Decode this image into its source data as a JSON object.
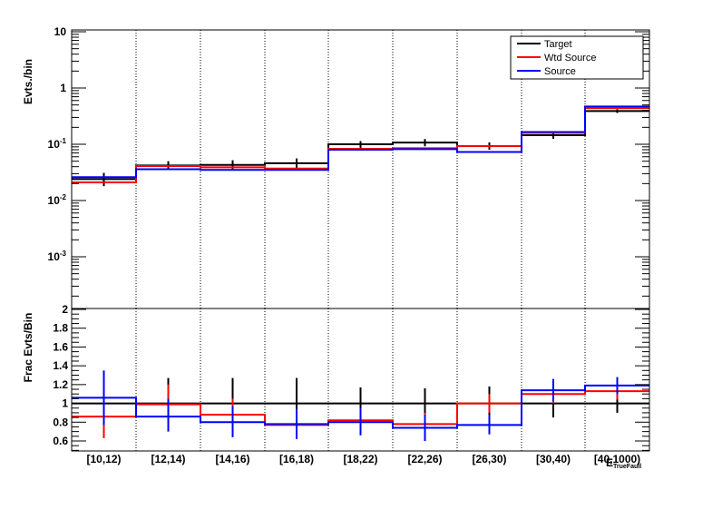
{
  "chart_data": [
    {
      "type": "step",
      "panel": "top",
      "ylabel": "Evts./bin",
      "yscale": "log",
      "ylim": [
        0.0002,
        10
      ],
      "y_tick_labels": [
        {
          "label": "10",
          "exp": "-3",
          "value": 0.001
        },
        {
          "label": "10",
          "exp": "-2",
          "value": 0.01
        },
        {
          "label": "10",
          "exp": "-1",
          "value": 0.1
        },
        {
          "label": "1",
          "exp": "",
          "value": 1
        },
        {
          "label": "10",
          "exp": "",
          "value": 10
        }
      ],
      "categories": [
        "[10,12)",
        "[12,14)",
        "[14,16)",
        "[16,18)",
        "[18,22)",
        "[22,26)",
        "[26,30)",
        "[30,40)",
        "[40,1000)"
      ],
      "grid_x": true,
      "grid_y": false,
      "legend_position": "top-right",
      "series": [
        {
          "name": "Target",
          "color": "#000000",
          "values": [
            0.024,
            0.042,
            0.043,
            0.046,
            0.1,
            0.107,
            0.093,
            0.145,
            0.39
          ],
          "err_low": [
            0.018,
            0.035,
            0.035,
            0.036,
            0.085,
            0.092,
            0.08,
            0.125,
            0.36
          ],
          "err_high": [
            0.031,
            0.05,
            0.052,
            0.056,
            0.114,
            0.124,
            0.108,
            0.165,
            0.42
          ]
        },
        {
          "name": "Wtd Source",
          "color": "#ff0000",
          "values": [
            0.021,
            0.041,
            0.039,
            0.037,
            0.083,
            0.085,
            0.093,
            0.16,
            0.44
          ],
          "err_low": [
            0.021,
            0.041,
            0.039,
            0.037,
            0.083,
            0.085,
            0.093,
            0.16,
            0.44
          ],
          "err_high": [
            0.021,
            0.041,
            0.039,
            0.037,
            0.083,
            0.085,
            0.093,
            0.16,
            0.44
          ]
        },
        {
          "name": "Source",
          "color": "#0000ff",
          "values": [
            0.026,
            0.036,
            0.035,
            0.035,
            0.08,
            0.082,
            0.073,
            0.165,
            0.47
          ],
          "err_low": [
            0.026,
            0.036,
            0.035,
            0.035,
            0.08,
            0.082,
            0.073,
            0.165,
            0.47
          ],
          "err_high": [
            0.026,
            0.036,
            0.035,
            0.035,
            0.08,
            0.082,
            0.073,
            0.165,
            0.47
          ]
        }
      ]
    },
    {
      "type": "step",
      "panel": "bottom",
      "ylabel": "Frac Evts/Bin",
      "yscale": "linear",
      "ylim": [
        0.5,
        2
      ],
      "y_tick_labels": [
        "0.6",
        "0.8",
        "1",
        "1.2",
        "1.4",
        "1.6",
        "1.8",
        "2"
      ],
      "categories": [
        "[10,12)",
        "[12,14)",
        "[14,16)",
        "[16,18)",
        "[18,22)",
        "[22,26)",
        "[26,30)",
        "[30,40)",
        "[40,1000)"
      ],
      "xlabel": "E",
      "xlabel_sub": "TrueFaull",
      "grid_x": true,
      "series": [
        {
          "name": "Target",
          "color": "#000000",
          "values": [
            1,
            1,
            1,
            1,
            1,
            1,
            1,
            1,
            1
          ],
          "err_low": [
            1,
            0.73,
            0.73,
            0.73,
            0.82,
            0.84,
            0.86,
            0.85,
            0.9
          ],
          "err_high": [
            1,
            1.27,
            1.27,
            1.27,
            1.17,
            1.16,
            1.18,
            1.15,
            1.1
          ]
        },
        {
          "name": "Wtd Source",
          "color": "#ff0000",
          "values": [
            0.86,
            0.99,
            0.88,
            0.77,
            0.82,
            0.78,
            1.0,
            1.1,
            1.13
          ],
          "err_low": [
            0.63,
            0.86,
            0.74,
            0.66,
            0.72,
            0.68,
            0.9,
            1.0,
            1.04
          ],
          "err_high": [
            1.08,
            1.2,
            1.05,
            0.86,
            0.93,
            0.9,
            1.1,
            1.2,
            1.22
          ]
        },
        {
          "name": "Source",
          "color": "#0000ff",
          "values": [
            1.06,
            0.86,
            0.8,
            0.78,
            0.8,
            0.74,
            0.77,
            1.14,
            1.19
          ],
          "err_low": [
            0.77,
            0.7,
            0.64,
            0.62,
            0.66,
            0.6,
            0.67,
            1.02,
            1.1
          ],
          "err_high": [
            1.35,
            1.05,
            0.97,
            0.94,
            0.95,
            0.88,
            0.88,
            1.26,
            1.28
          ]
        }
      ]
    }
  ]
}
